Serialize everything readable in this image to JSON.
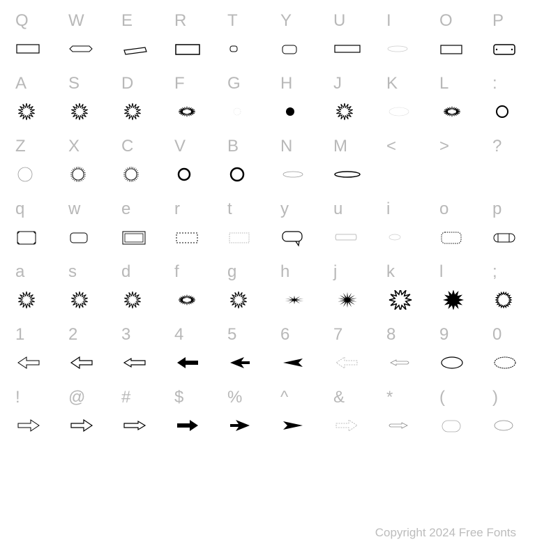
{
  "background_color": "#ffffff",
  "char_color": "#b8b8b8",
  "char_fontsize": 24,
  "glyph_stroke": "#000000",
  "glyph_fill_black": "#000000",
  "glyph_fill_none": "none",
  "copyright_text": "Copyright 2024 Free Fonts",
  "copyright_color": "#bcbcbc",
  "copyright_fontsize": 17,
  "rows": [
    {
      "chars": [
        "Q",
        "W",
        "E",
        "R",
        "T",
        "Y",
        "U",
        "I",
        "O",
        "P"
      ],
      "glyphs": [
        "rect-notch",
        "hexagon",
        "parallelogram",
        "rect-rough",
        "small-round",
        "round-rect",
        "rect-long",
        "oval-thin",
        "rect-simple",
        "rect-inset"
      ]
    },
    {
      "chars": [
        "A",
        "S",
        "D",
        "F",
        "G",
        "H",
        "J",
        "K",
        "L",
        ":"
      ],
      "glyphs": [
        "burst-a",
        "burst-b",
        "burst-c",
        "oval-burst",
        "dot-faint",
        "dot-solid",
        "burst-hollow",
        "oval-faint",
        "oval-burst2",
        "ring"
      ]
    },
    {
      "chars": [
        "Z",
        "X",
        "C",
        "V",
        "B",
        "N",
        "M",
        "<",
        ">",
        "?"
      ],
      "glyphs": [
        "circle",
        "sun-ring",
        "sun-ring2",
        "ring-thick",
        "ring-black",
        "oval-flat",
        "lens",
        "blank",
        "blank",
        "blank"
      ]
    },
    {
      "chars": [
        "q",
        "w",
        "e",
        "r",
        "t",
        "y",
        "u",
        "i",
        "o",
        "p"
      ],
      "glyphs": [
        "corner-frame",
        "round-rect-sm",
        "double-frame",
        "dot-rect",
        "dash-rect",
        "speech",
        "banner",
        "oval-tiny",
        "round-dot-frame",
        "pill"
      ]
    },
    {
      "chars": [
        "a",
        "s",
        "d",
        "f",
        "g",
        "h",
        "j",
        "k",
        "l",
        ";"
      ],
      "glyphs": [
        "star-burst",
        "star-burst2",
        "star-burst3",
        "oval-star",
        "star-burst4",
        "spike-black",
        "spike-black2",
        "star-hollow-big",
        "star-solid-big",
        "star-ring"
      ]
    },
    {
      "chars": [
        "1",
        "2",
        "3",
        "4",
        "5",
        "6",
        "7",
        "8",
        "9",
        "0"
      ],
      "glyphs": [
        "arrowL-1",
        "arrowL-2",
        "arrowL-3",
        "arrowL-solid",
        "arrowL-tri",
        "arrowL-dart",
        "arrowL-dot",
        "handL",
        "oval-plain",
        "oval-rough"
      ]
    },
    {
      "chars": [
        "!",
        "@",
        "#",
        "$",
        "%",
        "^",
        "&",
        "*",
        "(",
        ")"
      ],
      "glyphs": [
        "arrowR-1",
        "arrowR-2",
        "arrowR-3",
        "arrowR-solid",
        "arrowR-tri",
        "arrowR-dart",
        "arrowR-dot",
        "handR",
        "round-frame",
        "oval-small"
      ]
    }
  ]
}
